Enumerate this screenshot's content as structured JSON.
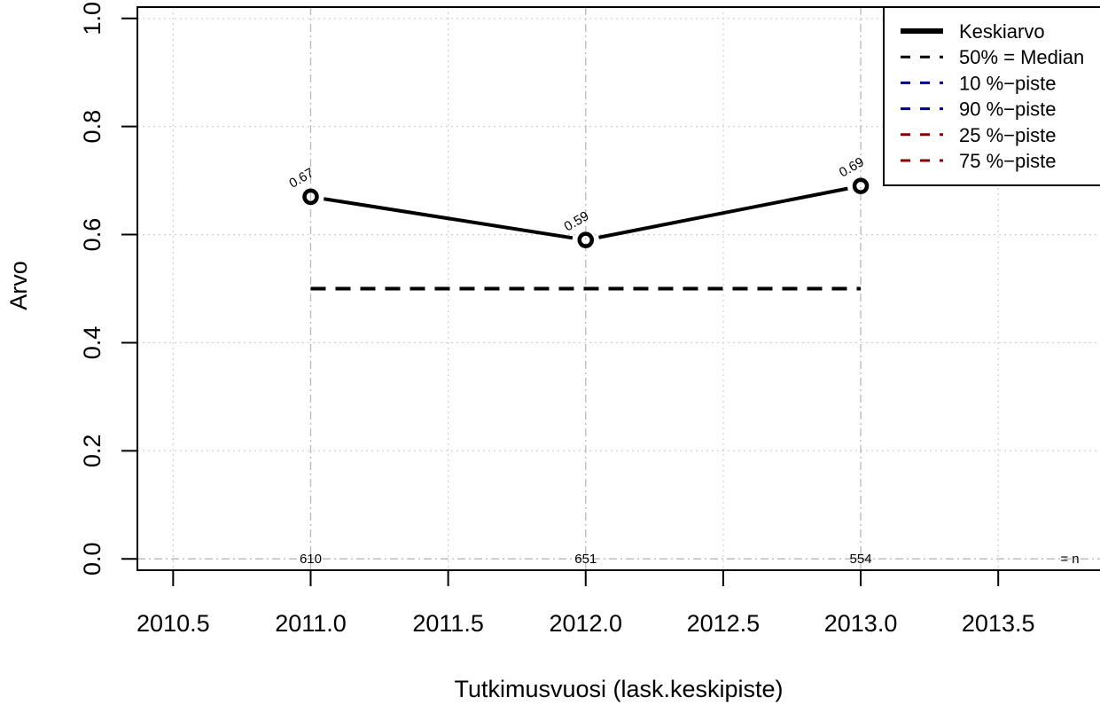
{
  "chart_data": {
    "type": "line",
    "xlabel": "Tutkimusvuosi (lask.keskipiste)",
    "ylabel": "Arvo",
    "xlim": [
      2010.37,
      2013.87
    ],
    "ylim": [
      -0.021,
      1.021
    ],
    "xticks": [
      2010.5,
      2011.0,
      2011.5,
      2012.0,
      2012.5,
      2013.0,
      2013.5
    ],
    "xtick_labels": [
      "2010.5",
      "2011.0",
      "2011.5",
      "2012.0",
      "2012.5",
      "2013.0",
      "2013.5"
    ],
    "yticks": [
      0.0,
      0.2,
      0.4,
      0.6,
      0.8,
      1.0
    ],
    "ytick_labels": [
      "0.0",
      "0.2",
      "0.4",
      "0.6",
      "0.8",
      "1.0"
    ],
    "x_gridlines": [
      2010.5,
      2011.5,
      2012.5,
      2013.5
    ],
    "y_gridlines": [
      0.2,
      0.4,
      0.6,
      0.8,
      1.0
    ],
    "x_refs": [
      2011,
      2012,
      2013
    ],
    "series": [
      {
        "name": "Keskiarvo",
        "x": [
          2011,
          2012,
          2013
        ],
        "values": [
          0.67,
          0.59,
          0.69
        ],
        "labels": [
          "0.67",
          "0.59",
          "0.69"
        ],
        "color": "#000000",
        "style": "solid"
      },
      {
        "name": "50% = Median",
        "x": [
          2011,
          2012,
          2013
        ],
        "values": [
          0.5,
          0.5,
          0.5
        ],
        "color": "#000000",
        "style": "dashed"
      }
    ],
    "n_labels": [
      {
        "x": 2011,
        "text": "610"
      },
      {
        "x": 2012,
        "text": "651"
      },
      {
        "x": 2013,
        "text": "554"
      }
    ],
    "n_suffix": "= n",
    "legend": {
      "position": "top-right",
      "entries": [
        {
          "label": "Keskiarvo",
          "color": "#000000",
          "style": "solid"
        },
        {
          "label": "50% = Median",
          "color": "#000000",
          "style": "dashed"
        },
        {
          "label": "10 %−piste",
          "color": "#00008B",
          "style": "dashed"
        },
        {
          "label": "90 %−piste",
          "color": "#00008B",
          "style": "dashed"
        },
        {
          "label": "25 %−piste",
          "color": "#8B0000",
          "style": "dashed"
        },
        {
          "label": "75 %−piste",
          "color": "#8B0000",
          "style": "dashed"
        }
      ]
    }
  }
}
